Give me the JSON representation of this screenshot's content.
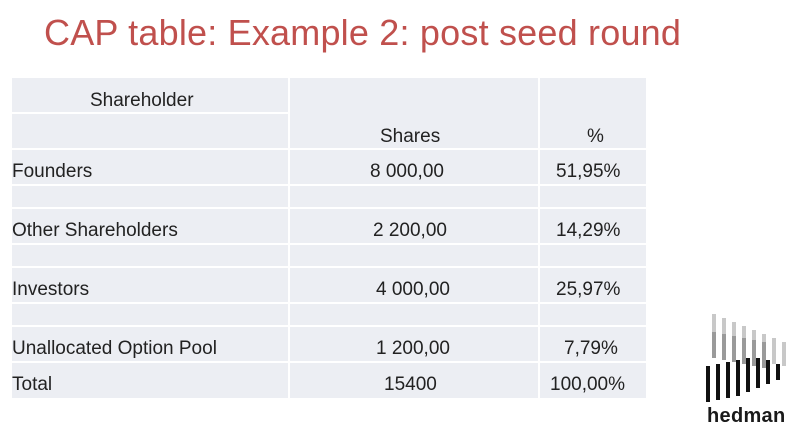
{
  "slide": {
    "title": "CAP table: Example 2: post seed round"
  },
  "table": {
    "headers": {
      "shareholder": "Shareholder",
      "shares": "Shares",
      "percent": "%"
    },
    "rows": [
      {
        "shareholder": "Founders",
        "shares": "8 000,00",
        "percent": "51,95%"
      },
      {
        "shareholder": "Other Shareholders",
        "shares": "2 200,00",
        "percent": "14,29%"
      },
      {
        "shareholder": "Investors",
        "shares": "4 000,00",
        "percent": "25,97%"
      },
      {
        "shareholder": "Unallocated Option Pool",
        "shares": "1 200,00",
        "percent": "7,79%"
      }
    ],
    "total": {
      "shareholder": "Total",
      "shares": "15400",
      "percent": "100,00%"
    },
    "background_color": "#eceef3"
  },
  "logo": {
    "text": "hedman",
    "icon": "hedman-bars-icon"
  },
  "colors": {
    "title": "#c0504d",
    "text": "#222222"
  }
}
